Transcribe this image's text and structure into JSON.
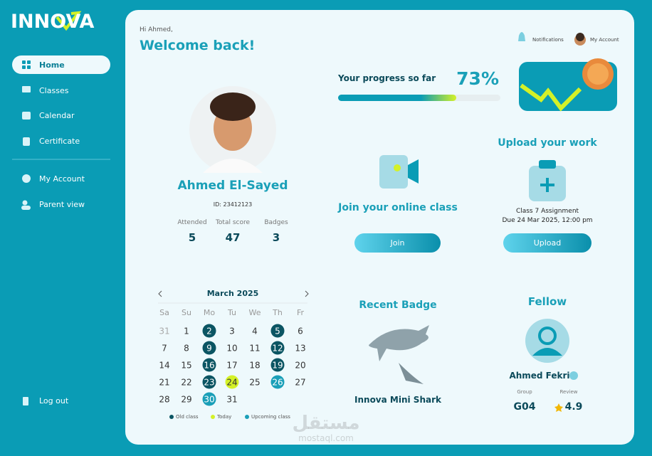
{
  "logo": "INNOVA",
  "nav": {
    "items": [
      "Home",
      "Classes",
      "Calendar",
      "Certificate"
    ],
    "account_items": [
      "My Account",
      "Parent view"
    ],
    "logout": "Log out"
  },
  "header": {
    "greeting": "Hi Ahmed,",
    "title": "Welcome back!",
    "notifications": "Notifications",
    "account": "My Account"
  },
  "profile": {
    "name": "Ahmed El-Sayed",
    "id": "ID: 23412123",
    "stats": [
      {
        "label": "Attended",
        "value": 5
      },
      {
        "label": "Total score",
        "value": 47
      },
      {
        "label": "Badges",
        "value": 3
      }
    ]
  },
  "progress": {
    "label": "Your progress so far",
    "percent": {
      "value": 73,
      "label": "73%"
    }
  },
  "online_class": {
    "title": "Join your online class",
    "button": "Join"
  },
  "upload": {
    "title": "Upload your work",
    "assignment": "Class 7 Assignment",
    "due": "Due 24 Mar 2025, 12:00 pm",
    "button": "Upload"
  },
  "calendar": {
    "month": "March 2025",
    "weekdays": [
      "Sa",
      "Su",
      "Mo",
      "Tu",
      "We",
      "Th",
      "Fr"
    ],
    "weeks": [
      [
        {
          "day": 31,
          "status": "outside"
        },
        {
          "day": 1,
          "status": null
        },
        {
          "day": 2,
          "status": "old"
        },
        {
          "day": 3,
          "status": null
        },
        {
          "day": 4,
          "status": null
        },
        {
          "day": 5,
          "status": "old"
        },
        {
          "day": 6,
          "status": null
        }
      ],
      [
        {
          "day": 7,
          "status": null
        },
        {
          "day": 8,
          "status": null
        },
        {
          "day": 9,
          "status": "old"
        },
        {
          "day": 10,
          "status": null
        },
        {
          "day": 11,
          "status": null
        },
        {
          "day": 12,
          "status": "old"
        },
        {
          "day": 13,
          "status": null
        }
      ],
      [
        {
          "day": 14,
          "status": null
        },
        {
          "day": 15,
          "status": null
        },
        {
          "day": 16,
          "status": "old"
        },
        {
          "day": 17,
          "status": null
        },
        {
          "day": 18,
          "status": null
        },
        {
          "day": 19,
          "status": "old"
        },
        {
          "day": 20,
          "status": null
        }
      ],
      [
        {
          "day": 21,
          "status": null
        },
        {
          "day": 22,
          "status": null
        },
        {
          "day": 23,
          "status": "old"
        },
        {
          "day": 24,
          "status": "today"
        },
        {
          "day": 25,
          "status": null
        },
        {
          "day": 26,
          "status": "upcoming"
        },
        {
          "day": 27,
          "status": null
        }
      ],
      [
        {
          "day": 28,
          "status": null
        },
        {
          "day": 29,
          "status": null
        },
        {
          "day": 30,
          "status": "upcoming"
        },
        {
          "day": 31,
          "status": null
        }
      ]
    ],
    "legend": [
      {
        "label": "Old class",
        "status": "old",
        "color": "#0b5563"
      },
      {
        "label": "Today",
        "status": "today",
        "color": "#d4f127"
      },
      {
        "label": "Upcoming class",
        "status": "upcoming",
        "color": "#1a9fb8"
      }
    ]
  },
  "badge": {
    "title": "Recent Badge",
    "name": "Innova Mini Shark"
  },
  "fellow": {
    "title": "Fellow",
    "name": "Ahmed Fekri",
    "stats": [
      {
        "label": "Group",
        "value": "G04"
      },
      {
        "label": "Review",
        "value": 4.9
      }
    ]
  },
  "watermark": {
    "arabic": "مستقل",
    "site": "mostaql.com"
  }
}
